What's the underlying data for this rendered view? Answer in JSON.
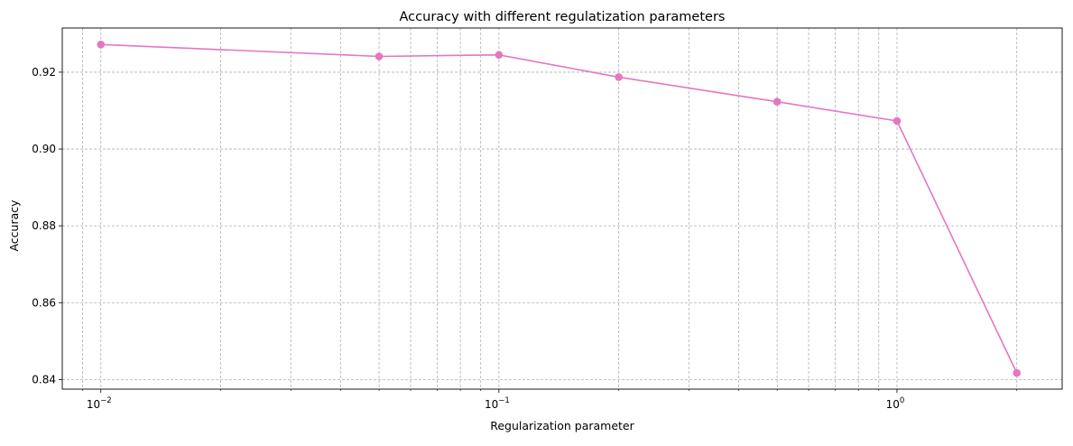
{
  "chart_data": {
    "type": "line",
    "title": "Accuracy with different regulatization parameters",
    "xlabel": "Regularization parameter",
    "ylabel": "Accuracy",
    "xscale": "log",
    "xlim": [
      0.008,
      2.6
    ],
    "ylim": [
      0.8375,
      0.9315
    ],
    "grid": true,
    "legend": "none",
    "colors": {
      "series": "#e377c2",
      "grid": "#b0b0b0",
      "axes": "#000000"
    },
    "x_ticks": [
      {
        "value": 0.01,
        "base": "10",
        "exp": "−2"
      },
      {
        "value": 0.1,
        "base": "10",
        "exp": "−1"
      },
      {
        "value": 1,
        "base": "10",
        "exp": "0"
      }
    ],
    "y_ticks": [
      {
        "value": 0.84,
        "label": "0.84"
      },
      {
        "value": 0.86,
        "label": "0.86"
      },
      {
        "value": 0.88,
        "label": "0.88"
      },
      {
        "value": 0.9,
        "label": "0.90"
      },
      {
        "value": 0.92,
        "label": "0.92"
      }
    ],
    "series": [
      {
        "x": [
          0.01,
          0.05,
          0.1,
          0.2,
          0.5,
          1,
          2
        ],
        "y": [
          0.9272,
          0.9241,
          0.9245,
          0.9187,
          0.9123,
          0.9073,
          0.8417
        ]
      }
    ]
  }
}
